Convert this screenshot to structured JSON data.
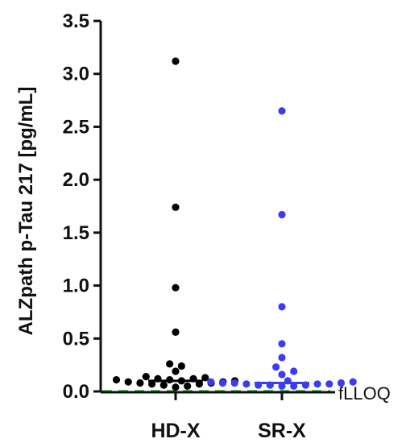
{
  "chart_data": {
    "type": "scatter",
    "ylabel": "ALZpath p-Tau 217 [pg/mL]",
    "ylim": [
      0,
      3.5
    ],
    "yticks": [
      "0.0",
      "0.5",
      "1.0",
      "1.5",
      "2.0",
      "2.5",
      "3.0",
      "3.5"
    ],
    "categories": [
      "HD-X",
      "SR-X"
    ],
    "grid": false,
    "reference_line": {
      "label": "fLLOQ",
      "value": 0.0,
      "color": "#2db52d",
      "style": "dashed"
    },
    "series": [
      {
        "category": "HD-X",
        "color": "#000000",
        "values": [
          3.12,
          1.74,
          0.98,
          0.56,
          0.26,
          0.24,
          0.19,
          0.14,
          0.13,
          0.12,
          0.12,
          0.11,
          0.11,
          0.1,
          0.1,
          0.09,
          0.09,
          0.08,
          0.08,
          0.07,
          0.07,
          0.06,
          0.05,
          0.04
        ],
        "median": 0.1
      },
      {
        "category": "SR-X",
        "color": "#3d3df0",
        "values": [
          2.65,
          1.67,
          0.8,
          0.45,
          0.32,
          0.23,
          0.19,
          0.16,
          0.1,
          0.09,
          0.09,
          0.08,
          0.08,
          0.08,
          0.07,
          0.07,
          0.07,
          0.06,
          0.06,
          0.06,
          0.05,
          0.05
        ],
        "median": 0.08
      }
    ]
  }
}
